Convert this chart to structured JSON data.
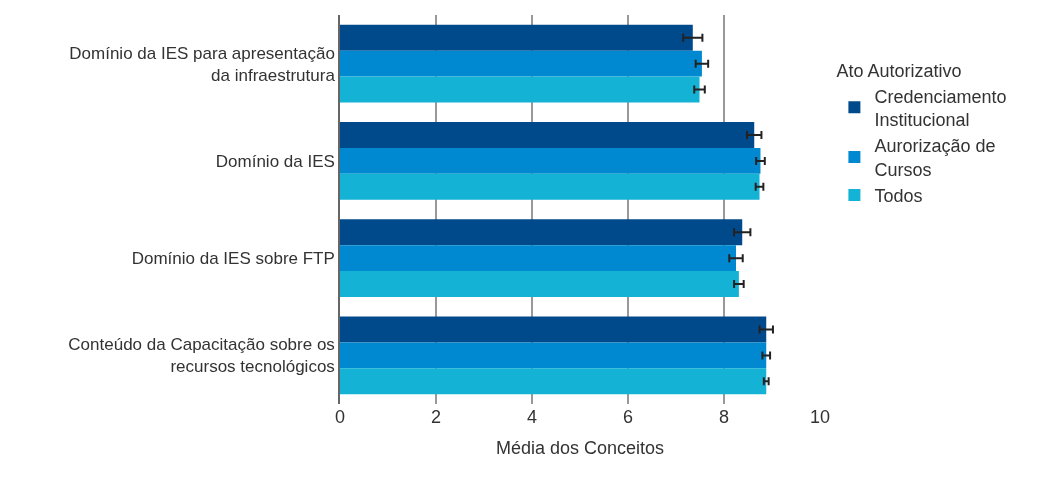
{
  "chart_data": {
    "type": "bar",
    "orientation": "horizontal",
    "xlabel": "Média dos Conceitos",
    "legend_title": "Ato Autorizativo",
    "legend": "right",
    "grid": "x",
    "categories": [
      "Domínio da IES para apresentação da infraestrutura",
      "Domínio da IES",
      "Domínio da IES sobre FTP",
      "Conteúdo da Capacitação sobre os recursos tecnológicos"
    ],
    "xlim": [
      0,
      10
    ],
    "xticks": [
      0,
      2,
      4,
      6,
      8,
      10
    ],
    "series": [
      {
        "name": "Credenciamento Institucional",
        "color": "#004a8c",
        "values": [
          7.35,
          8.63,
          8.38,
          8.88
        ],
        "errors": [
          0.2,
          0.15,
          0.17,
          0.14
        ]
      },
      {
        "name": "Aurorização de Cursos",
        "color": "#0088d1",
        "values": [
          7.54,
          8.76,
          8.25,
          8.88
        ],
        "errors": [
          0.13,
          0.09,
          0.14,
          0.08
        ]
      },
      {
        "name": "Todos",
        "color": "#14b2d4",
        "values": [
          7.49,
          8.74,
          8.31,
          8.88
        ],
        "errors": [
          0.11,
          0.08,
          0.1,
          0.05
        ]
      }
    ]
  }
}
